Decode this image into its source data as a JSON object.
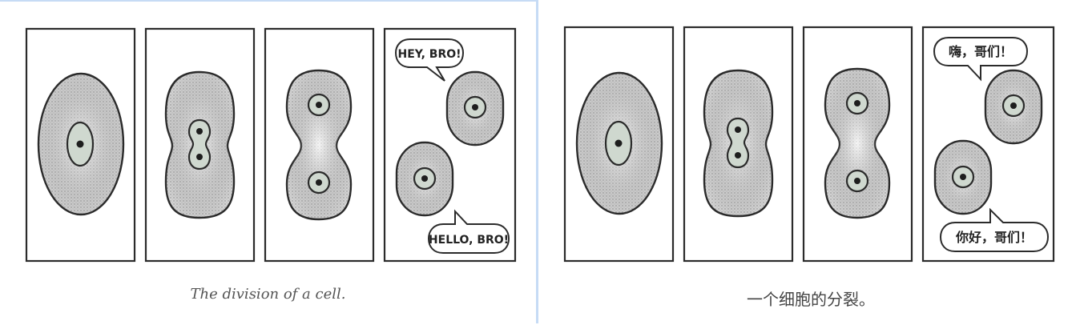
{
  "comic_en": {
    "bubble_top": "HEY, BRO!",
    "bubble_bottom": "HELLO, BRO!",
    "caption": "The division of a cell."
  },
  "comic_zh": {
    "bubble_top": "嗨，哥们！",
    "bubble_bottom": "你好，哥们！",
    "caption": "一个细胞的分裂。"
  },
  "colors": {
    "cell_fill": "#e6e6e6",
    "nucleus_fill": "#cfd8cf",
    "outline": "#2b2b2b",
    "caption_text": "#555555",
    "divider": "#c6dbf5"
  }
}
